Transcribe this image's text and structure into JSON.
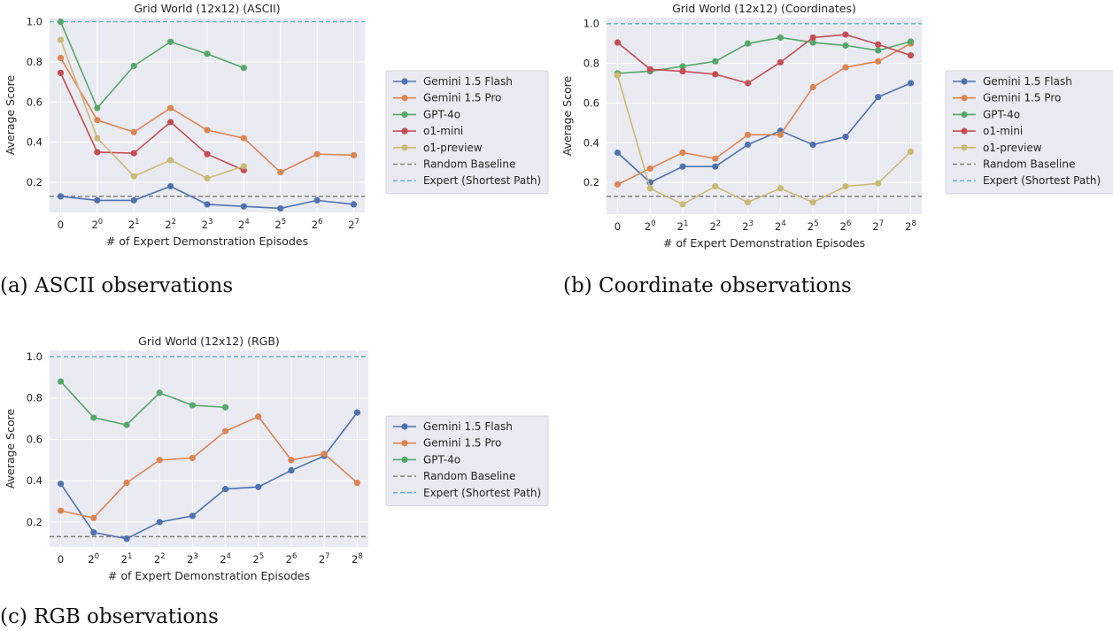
{
  "captions": [
    "(a) ASCII observations",
    "(b) Coordinate observations",
    "(c) RGB observations"
  ],
  "styles": {
    "plot_bg": "#EAEAF2",
    "grid": "#FFFFFF",
    "series_colors": {
      "Gemini 1.5 Flash": "#4C72B0",
      "Gemini 1.5 Pro": "#DD8452",
      "GPT-4o": "#55A868",
      "o1-mini": "#C44E52",
      "o1-preview": "#CCB974",
      "Random Baseline": "#808080",
      "Expert (Shortest Path)": "#64B5CD"
    }
  },
  "chart_data": [
    {
      "type": "line",
      "title": "Grid World (12x12) (ASCII)",
      "xlabel": "# of Expert Demonstration Episodes",
      "ylabel": "Average Score",
      "categories": [
        "0",
        "2^0",
        "2^1",
        "2^2",
        "2^3",
        "2^4",
        "2^5",
        "2^6",
        "2^7"
      ],
      "ylim": [
        0.05,
        1.02
      ],
      "yticks": [
        0.2,
        0.4,
        0.6,
        0.8,
        1.0
      ],
      "grid": true,
      "legend_position": "right",
      "series": [
        {
          "name": "Gemini 1.5 Flash",
          "values": [
            0.13,
            0.11,
            0.11,
            0.18,
            0.09,
            0.08,
            0.07,
            0.11,
            0.09
          ]
        },
        {
          "name": "Gemini 1.5 Pro",
          "values": [
            0.82,
            0.51,
            0.45,
            0.57,
            0.46,
            0.42,
            0.25,
            0.34,
            0.335
          ]
        },
        {
          "name": "GPT-4o",
          "values": [
            1.0,
            0.57,
            0.78,
            0.9,
            0.84,
            0.77,
            null,
            null,
            null
          ]
        },
        {
          "name": "o1-mini",
          "values": [
            0.745,
            0.35,
            0.345,
            0.5,
            0.34,
            0.26,
            null,
            null,
            null
          ]
        },
        {
          "name": "o1-preview",
          "values": [
            0.91,
            0.42,
            0.23,
            0.31,
            0.22,
            0.28,
            null,
            null,
            null
          ]
        }
      ],
      "reference_lines": [
        {
          "name": "Random Baseline",
          "value": 0.13
        },
        {
          "name": "Expert (Shortest Path)",
          "value": 1.0
        }
      ]
    },
    {
      "type": "line",
      "title": "Grid World (12x12) (Coordinates)",
      "xlabel": "# of Expert Demonstration Episodes",
      "ylabel": "Average Score",
      "categories": [
        "0",
        "2^0",
        "2^1",
        "2^2",
        "2^3",
        "2^4",
        "2^5",
        "2^6",
        "2^7",
        "2^8"
      ],
      "ylim": [
        0.04,
        1.03
      ],
      "yticks": [
        0.2,
        0.4,
        0.6,
        0.8,
        1.0
      ],
      "grid": true,
      "legend_position": "right",
      "series": [
        {
          "name": "Gemini 1.5 Flash",
          "values": [
            0.35,
            0.2,
            0.28,
            0.28,
            0.39,
            0.46,
            0.39,
            0.43,
            0.63,
            0.7
          ]
        },
        {
          "name": "Gemini 1.5 Pro",
          "values": [
            0.19,
            0.27,
            0.35,
            0.32,
            0.44,
            0.44,
            0.68,
            0.78,
            0.81,
            0.9
          ]
        },
        {
          "name": "GPT-4o",
          "values": [
            0.75,
            0.76,
            0.785,
            0.81,
            0.9,
            0.93,
            0.905,
            0.89,
            0.865,
            0.91
          ]
        },
        {
          "name": "o1-mini",
          "values": [
            0.905,
            0.77,
            0.76,
            0.745,
            0.7,
            0.805,
            0.93,
            0.945,
            0.895,
            0.84
          ]
        },
        {
          "name": "o1-preview",
          "values": [
            0.74,
            0.17,
            0.09,
            0.18,
            0.1,
            0.17,
            0.1,
            0.18,
            0.195,
            0.355
          ]
        }
      ],
      "reference_lines": [
        {
          "name": "Random Baseline",
          "value": 0.13
        },
        {
          "name": "Expert (Shortest Path)",
          "value": 1.0
        }
      ]
    },
    {
      "type": "line",
      "title": "Grid World (12x12) (RGB)",
      "xlabel": "# of Expert Demonstration Episodes",
      "ylabel": "Average Score",
      "categories": [
        "0",
        "2^0",
        "2^1",
        "2^2",
        "2^3",
        "2^4",
        "2^5",
        "2^6",
        "2^7",
        "2^8"
      ],
      "ylim": [
        0.08,
        1.03
      ],
      "yticks": [
        0.2,
        0.4,
        0.6,
        0.8,
        1.0
      ],
      "grid": true,
      "legend_position": "right",
      "series": [
        {
          "name": "Gemini 1.5 Flash",
          "values": [
            0.385,
            0.15,
            0.12,
            0.2,
            0.23,
            0.36,
            0.37,
            0.45,
            0.52,
            0.73
          ]
        },
        {
          "name": "Gemini 1.5 Pro",
          "values": [
            0.255,
            0.22,
            0.39,
            0.5,
            0.51,
            0.64,
            0.71,
            0.5,
            0.53,
            0.39
          ]
        },
        {
          "name": "GPT-4o",
          "values": [
            0.88,
            0.705,
            0.67,
            0.825,
            0.765,
            0.755,
            null,
            null,
            null,
            null
          ]
        }
      ],
      "reference_lines": [
        {
          "name": "Random Baseline",
          "value": 0.13
        },
        {
          "name": "Expert (Shortest Path)",
          "value": 1.0
        }
      ]
    }
  ]
}
